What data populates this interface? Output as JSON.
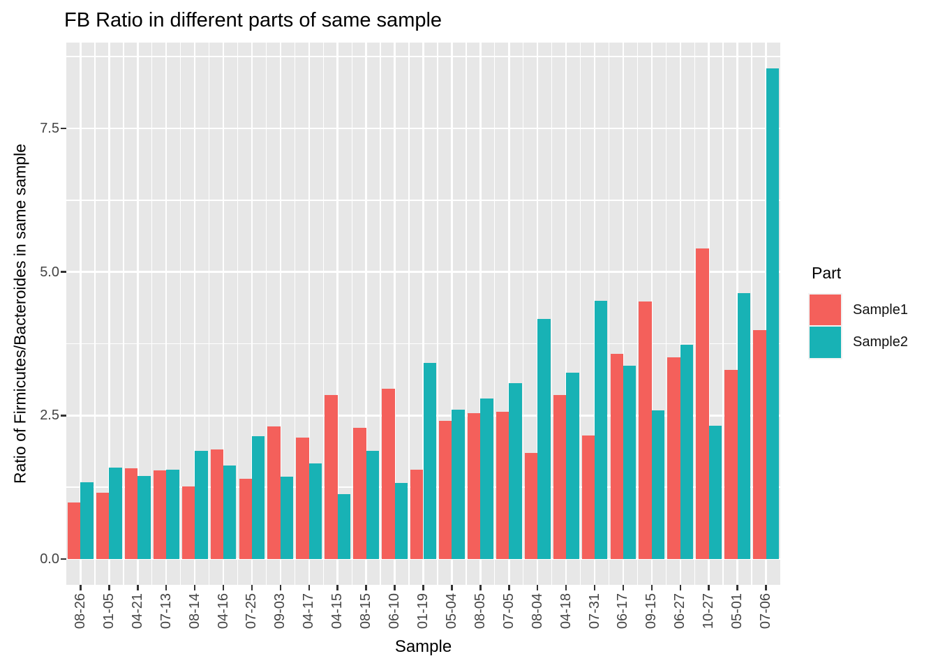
{
  "title": "FB Ratio in different parts of same sample",
  "chart_data": {
    "type": "bar",
    "title": "FB Ratio in different parts of same sample",
    "xlabel": "Sample",
    "ylabel": "Ratio of Firmicutes/Bacteroides in same sample",
    "categories": [
      "08-26",
      "01-05",
      "04-21",
      "07-13",
      "08-14",
      "04-16",
      "07-25",
      "09-03",
      "04-17",
      "04-15",
      "08-15",
      "06-10",
      "01-19",
      "05-04",
      "08-05",
      "07-05",
      "08-04",
      "04-18",
      "07-31",
      "06-17",
      "09-15",
      "06-27",
      "10-27",
      "05-01",
      "07-06"
    ],
    "series": [
      {
        "name": "Sample1",
        "color": "#F4605B",
        "values": [
          0.98,
          1.15,
          1.58,
          1.54,
          1.26,
          1.91,
          1.4,
          2.31,
          2.11,
          2.86,
          2.29,
          2.96,
          1.56,
          2.41,
          2.54,
          2.57,
          1.85,
          2.86,
          2.15,
          3.57,
          4.48,
          3.51,
          5.41,
          3.3,
          3.99
        ]
      },
      {
        "name": "Sample2",
        "color": "#18B2B5",
        "values": [
          1.34,
          1.59,
          1.45,
          1.56,
          1.89,
          1.63,
          2.14,
          1.43,
          1.67,
          1.13,
          1.89,
          1.32,
          3.41,
          2.6,
          2.8,
          3.06,
          4.18,
          3.24,
          4.5,
          3.37,
          2.59,
          3.73,
          2.32,
          4.63,
          8.55
        ]
      }
    ],
    "yticks": [
      0.0,
      2.5,
      5.0,
      7.5
    ],
    "ytick_labels": [
      "0.0",
      "2.5",
      "5.0",
      "7.5"
    ],
    "yminor": [
      1.25,
      3.75,
      6.25,
      8.75
    ],
    "ylim": [
      -0.45,
      8.98
    ],
    "grid": "white major+minor on gray panel",
    "legend_position": "right",
    "bar_layout": "dodged pairs, x labels rotated 90deg"
  },
  "legend": {
    "title": "Part",
    "entries": [
      {
        "label": "Sample1",
        "color": "#F4605B"
      },
      {
        "label": "Sample2",
        "color": "#18B2B5"
      }
    ]
  },
  "colors": {
    "panel_bg": "#E7E7E7",
    "grid": "#FFFFFF",
    "tick_mark": "#333333",
    "axis_text": "#444444",
    "title_text": "#000000",
    "sample1": "#F4605B",
    "sample2": "#18B2B5"
  }
}
